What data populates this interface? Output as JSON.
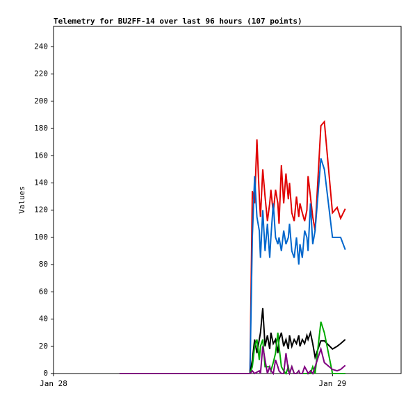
{
  "chart_data": {
    "type": "line",
    "title": "Telemetry for BU2FF-14 over last 96 hours (107 points)",
    "y_label": "Values",
    "x": [
      5.7,
      16.9,
      17.1,
      17.3,
      17.5,
      17.7,
      17.8,
      18.0,
      18.2,
      18.4,
      18.6,
      18.7,
      18.9,
      19.1,
      19.3,
      19.4,
      19.6,
      19.8,
      20.0,
      20.2,
      20.3,
      20.5,
      20.7,
      20.9,
      21.1,
      21.2,
      21.4,
      21.6,
      21.8,
      21.9,
      22.1,
      22.3,
      22.5,
      23.0,
      23.3,
      24.0,
      24.4,
      24.7,
      25.1
    ],
    "xlim": [
      0,
      29.9
    ],
    "xticks": [
      {
        "value": 0,
        "label": "Jan 28"
      },
      {
        "value": 24,
        "label": "Jan 29"
      }
    ],
    "ylim": [
      0,
      255
    ],
    "yticks": [
      0,
      20,
      40,
      60,
      80,
      100,
      120,
      140,
      160,
      180,
      200,
      220,
      240
    ],
    "series": [
      {
        "color": "#e00000",
        "values": [
          0,
          0,
          134,
          125,
          172,
          130,
          115,
          150,
          130,
          112,
          125,
          135,
          118,
          135,
          125,
          110,
          153,
          125,
          147,
          128,
          140,
          118,
          112,
          130,
          115,
          125,
          118,
          112,
          120,
          145,
          130,
          115,
          105,
          182,
          185,
          118,
          122,
          114,
          121
        ]
      },
      {
        "color": "#0066cc",
        "values": [
          0,
          0,
          100,
          145,
          115,
          105,
          85,
          120,
          90,
          110,
          85,
          100,
          125,
          100,
          95,
          100,
          90,
          105,
          95,
          100,
          110,
          90,
          85,
          100,
          80,
          95,
          85,
          105,
          100,
          90,
          125,
          95,
          105,
          158,
          150,
          100,
          100,
          100,
          91
        ]
      },
      {
        "color": "#000000",
        "values": [
          0,
          0,
          10,
          25,
          15,
          25,
          30,
          48,
          20,
          28,
          18,
          30,
          22,
          25,
          15,
          25,
          30,
          20,
          25,
          18,
          28,
          20,
          25,
          22,
          28,
          20,
          25,
          22,
          28,
          25,
          30,
          22,
          12,
          24,
          24,
          18,
          20,
          22,
          25
        ]
      },
      {
        "color": "#00aa00",
        "values": [
          0,
          0,
          5,
          20,
          25,
          10,
          20,
          25,
          5,
          5,
          5,
          2,
          8,
          15,
          30,
          20,
          5,
          2,
          0,
          5,
          0,
          5,
          0,
          0,
          2,
          0,
          0,
          0,
          0,
          0,
          0,
          5,
          0,
          38,
          30,
          0,
          0,
          0,
          0
        ]
      },
      {
        "color": "#800080",
        "values": [
          0,
          0,
          2,
          0,
          1,
          2,
          0,
          20,
          10,
          0,
          5,
          2,
          0,
          10,
          5,
          2,
          0,
          0,
          15,
          2,
          0,
          5,
          0,
          0,
          2,
          0,
          0,
          5,
          2,
          0,
          2,
          0,
          5,
          18,
          8,
          3,
          2,
          3,
          6
        ]
      }
    ]
  }
}
